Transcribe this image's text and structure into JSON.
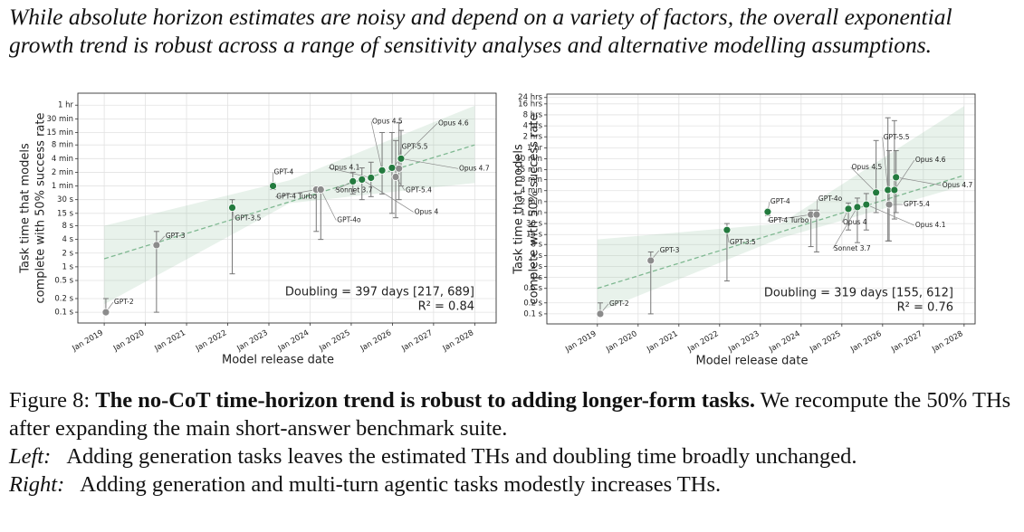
{
  "intro": "While absolute horizon estimates are noisy and depend on a variety of factors, the overall exponential growth trend is robust across a range of sensitivity analyses and alternative modelling assumptions.",
  "chart_data": [
    {
      "type": "scatter",
      "log_y": true,
      "grid": true,
      "xlabel": "Model release date",
      "ylabel": [
        "Task time that models",
        "complete with 50% success rate"
      ],
      "xlim": [
        2018.36,
        2028.52
      ],
      "ylim": [
        0.058,
        6600
      ],
      "xticks": [
        {
          "value": 2019,
          "label": "Jan 2019"
        },
        {
          "value": 2020,
          "label": "Jan 2020"
        },
        {
          "value": 2021,
          "label": "Jan 2021"
        },
        {
          "value": 2022,
          "label": "Jan 2022"
        },
        {
          "value": 2023,
          "label": "Jan 2023"
        },
        {
          "value": 2024,
          "label": "Jan 2024"
        },
        {
          "value": 2025,
          "label": "Jan 2025"
        },
        {
          "value": 2026,
          "label": "Jan 2026"
        },
        {
          "value": 2027,
          "label": "Jan 2027"
        },
        {
          "value": 2028,
          "label": "Jan 2028"
        }
      ],
      "yticks": [
        {
          "value": 0.1,
          "label": "0.1 s"
        },
        {
          "value": 0.2,
          "label": "0.2 s"
        },
        {
          "value": 0.5,
          "label": "0.5 s"
        },
        {
          "value": 1,
          "label": "1 s"
        },
        {
          "value": 2,
          "label": "2 s"
        },
        {
          "value": 4,
          "label": "4 s"
        },
        {
          "value": 8,
          "label": "8 s"
        },
        {
          "value": 15,
          "label": "15 s"
        },
        {
          "value": 30,
          "label": "30 s"
        },
        {
          "value": 60,
          "label": "1 min"
        },
        {
          "value": 120,
          "label": "2 min"
        },
        {
          "value": 240,
          "label": "4 min"
        },
        {
          "value": 480,
          "label": "8 min"
        },
        {
          "value": 900,
          "label": "15 min"
        },
        {
          "value": 1800,
          "label": "30 min"
        },
        {
          "value": 3600,
          "label": "1 hr"
        }
      ],
      "labels": [
        "GPT-2",
        "GPT-3",
        "GPT-3.5",
        "GPT-4",
        "GPT-4 Turbo",
        "GPT-4o",
        "Sonnet 3.7",
        "Opus 4",
        "Opus 4.1",
        "Opus 4.5",
        "GPT-5.4",
        "Opus 4.6",
        "GPT-5.5",
        "Opus 4.7"
      ],
      "x": [
        2019.04,
        2020.27,
        2022.11,
        2023.1,
        2024.15,
        2024.26,
        2025.04,
        2025.26,
        2025.48,
        2025.75,
        2026.08,
        2025.99,
        2026.16,
        2026.21
      ],
      "values": [
        0.1,
        3,
        20,
        60,
        50,
        50,
        76,
        83,
        91,
        132,
        95,
        151,
        145,
        240
      ],
      "err_low": [
        0.1,
        0.1,
        0.7,
        50,
        6,
        4,
        40,
        30,
        35,
        40,
        12,
        15,
        30,
        60
      ],
      "err_high": [
        0.2,
        6,
        30,
        70,
        55,
        55,
        120,
        150,
        200,
        900,
        600,
        900,
        1500,
        1000
      ],
      "point_colors": [
        "#8c8c8c",
        "#8c8c8c",
        "#237a3e",
        "#237a3e",
        "#8c8c8c",
        "#8c8c8c",
        "#237a3e",
        "#237a3e",
        "#237a3e",
        "#237a3e",
        "#8c8c8c",
        "#237a3e",
        "#8c8c8c",
        "#237a3e"
      ],
      "fit_x": [
        2019,
        2028
      ],
      "fit_y": [
        1.5,
        480
      ],
      "band_x": [
        2019,
        2023.5,
        2028
      ],
      "band_low": [
        0.15,
        25,
        70
      ],
      "band_high": [
        8,
        80,
        3500
      ],
      "fit_color": "#7fb891",
      "annotations": [
        "Doubling = 397 days [217, 689]",
        "R² = 0.84"
      ],
      "annotation_color": "#3a8f5a"
    },
    {
      "type": "scatter",
      "log_y": true,
      "grid": true,
      "xlabel": "Model release date",
      "ylabel": [
        "Task time that models",
        "complete with 50% success rate"
      ],
      "xlim": [
        2017.76,
        2028.27
      ],
      "ylim": [
        0.053,
        107000
      ],
      "xticks": [
        {
          "value": 2019,
          "label": "Jan 2019"
        },
        {
          "value": 2020,
          "label": "Jan 2020"
        },
        {
          "value": 2021,
          "label": "Jan 2021"
        },
        {
          "value": 2022,
          "label": "Jan 2022"
        },
        {
          "value": 2023,
          "label": "Jan 2023"
        },
        {
          "value": 2024,
          "label": "Jan 2024"
        },
        {
          "value": 2025,
          "label": "Jan 2025"
        },
        {
          "value": 2026,
          "label": "Jan 2026"
        },
        {
          "value": 2027,
          "label": "Jan 2027"
        },
        {
          "value": 2028,
          "label": "Jan 2028"
        }
      ],
      "yticks": [
        {
          "value": 0.1,
          "label": "0.1 s"
        },
        {
          "value": 0.2,
          "label": "0.2 s"
        },
        {
          "value": 0.5,
          "label": "0.5 s"
        },
        {
          "value": 1,
          "label": "1 s"
        },
        {
          "value": 2,
          "label": "2 s"
        },
        {
          "value": 4,
          "label": "4 s"
        },
        {
          "value": 8,
          "label": "8 s"
        },
        {
          "value": 15,
          "label": "15 s"
        },
        {
          "value": 30,
          "label": "30 s"
        },
        {
          "value": 60,
          "label": "1 min"
        },
        {
          "value": 120,
          "label": "2 min"
        },
        {
          "value": 240,
          "label": "4 min"
        },
        {
          "value": 480,
          "label": "8 min"
        },
        {
          "value": 900,
          "label": "15 min"
        },
        {
          "value": 1800,
          "label": "30 min"
        },
        {
          "value": 3600,
          "label": "1 hr"
        },
        {
          "value": 7200,
          "label": "2 hrs"
        },
        {
          "value": 14400,
          "label": "4 hrs"
        },
        {
          "value": 28800,
          "label": "8 hrs"
        },
        {
          "value": 57600,
          "label": "16 hrs"
        },
        {
          "value": 86400,
          "label": "24 hrs"
        }
      ],
      "labels": [
        "GPT-2",
        "GPT-3",
        "GPT-3.5",
        "GPT-4",
        "GPT-4 Turbo",
        "GPT-4o",
        "Opus 4",
        "Sonnet 3.7",
        "Opus 4.1",
        "Opus 4.5",
        "GPT-5.4",
        "GPT-5.5",
        "Opus 4.6",
        "Opus 4.7"
      ],
      "x": [
        2019.07,
        2020.31,
        2022.18,
        2023.18,
        2024.24,
        2024.38,
        2025.16,
        2025.38,
        2025.6,
        2025.84,
        2026.16,
        2026.13,
        2026.29,
        2026.33
      ],
      "values": [
        0.1,
        2.9,
        20,
        63,
        53,
        53,
        76,
        85,
        100,
        213,
        100,
        250,
        250,
        560
      ],
      "err_low": [
        0.1,
        0.1,
        0.8,
        50,
        7,
        5,
        20,
        9,
        20,
        60,
        10,
        10,
        40,
        60
      ],
      "err_high": [
        0.2,
        5,
        30,
        75,
        70,
        70,
        110,
        150,
        200,
        5700,
        3000,
        24000,
        20000,
        3000
      ],
      "point_colors": [
        "#8c8c8c",
        "#8c8c8c",
        "#237a3e",
        "#237a3e",
        "#8c8c8c",
        "#8c8c8c",
        "#237a3e",
        "#237a3e",
        "#237a3e",
        "#237a3e",
        "#8c8c8c",
        "#237a3e",
        "#237a3e",
        "#237a3e"
      ],
      "fit_x": [
        2019,
        2028
      ],
      "fit_y": [
        0.5,
        630
      ],
      "band_x": [
        2019,
        2023.5,
        2028
      ],
      "band_low": [
        0.11,
        12,
        330
      ],
      "band_high": [
        11,
        30,
        50000
      ],
      "fit_color": "#7fb891",
      "annotations": [
        "Doubling = 319 days [155, 612]",
        "R² = 0.76"
      ],
      "annotation_color": "#3a8f5a"
    }
  ],
  "caption": {
    "label": "Figure 8:",
    "title": "The no-CoT time-horizon trend is robust to adding longer-form tasks.",
    "text": "We recompute the 50% THs after expanding the main short-answer benchmark suite.",
    "left_label": "Left:",
    "left_text": "Adding generation tasks leaves the estimated THs and doubling time broadly unchanged.",
    "right_label": "Right:",
    "right_text": "Adding generation and multi-turn agentic tasks modestly increases THs."
  }
}
